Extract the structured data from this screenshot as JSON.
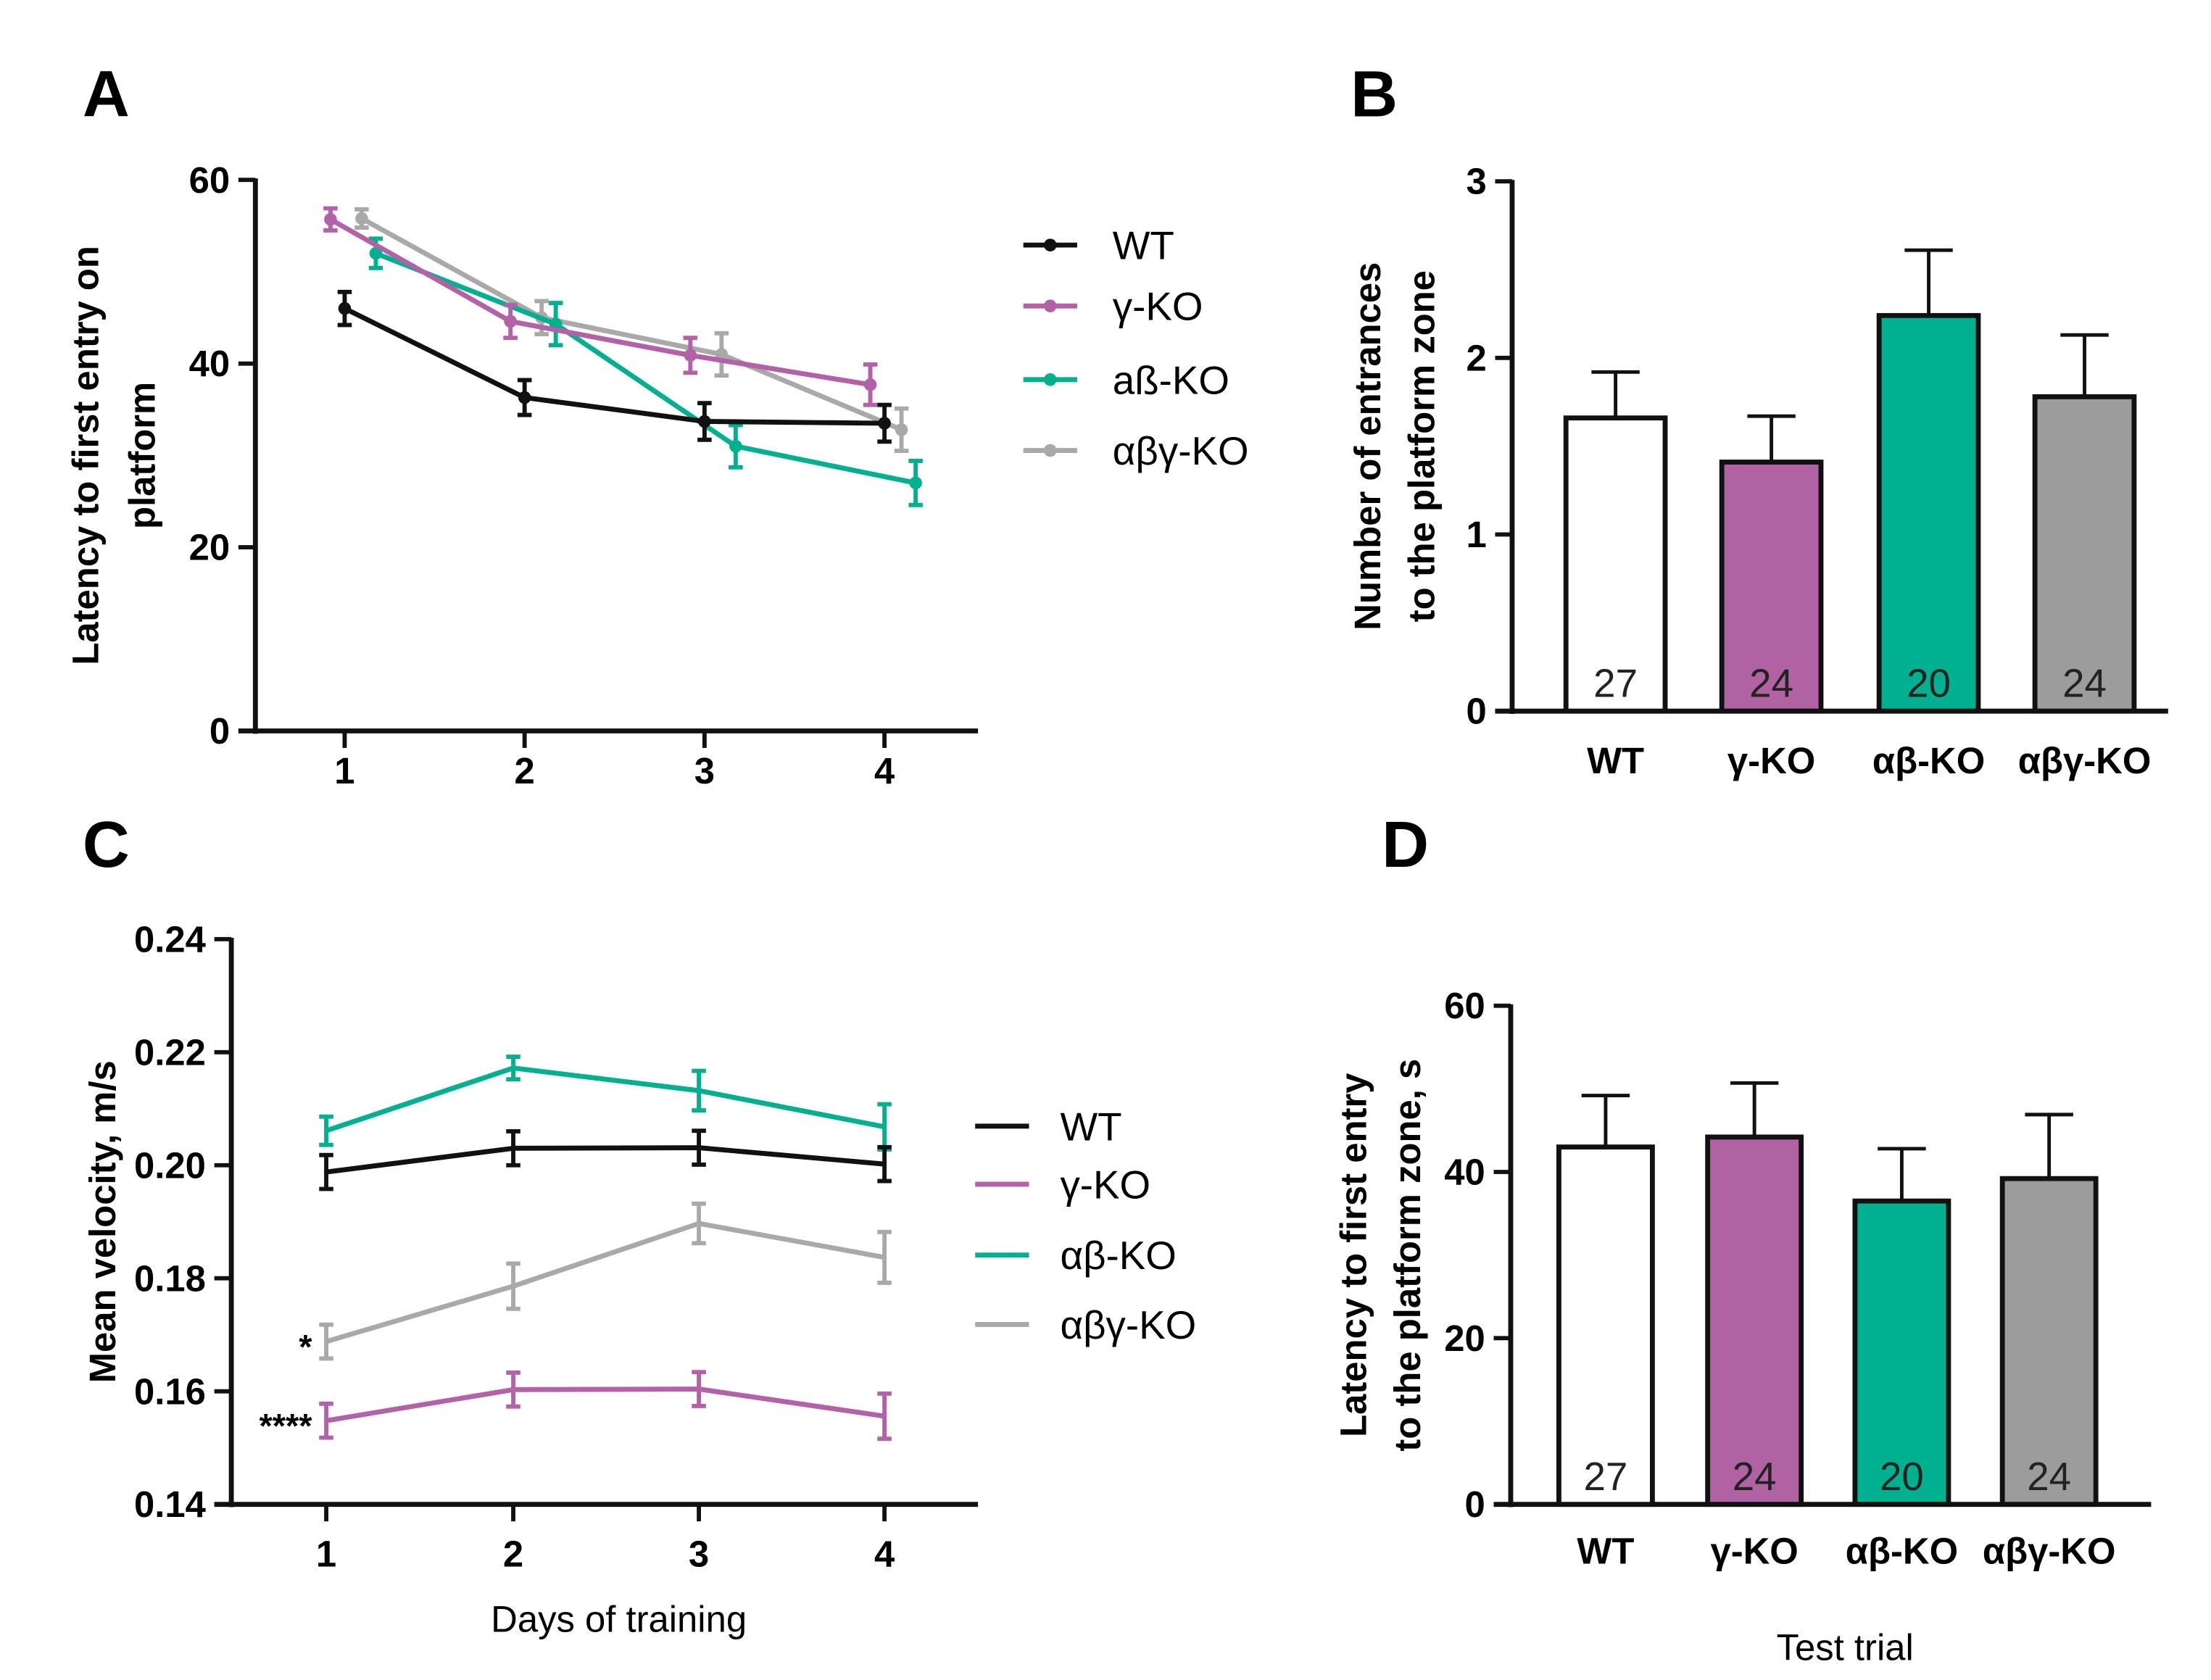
{
  "colors": {
    "WT": "#111111",
    "gamma": "#b462a8",
    "ab": "#00b08e",
    "abg": "#a9a9a9",
    "gamma_bar": "#b062a2",
    "ab_bar": "#00b08e",
    "abg_bar": "#9c9c9c",
    "wt_bar": "#ffffff"
  },
  "chart_data": [
    {
      "panel": "A",
      "type": "line",
      "ylabel": [
        "Latency to first entry on",
        "platform"
      ],
      "xlabel": "",
      "x": [
        1,
        2,
        3,
        4
      ],
      "xticks": [
        "1",
        "2",
        "3",
        "4"
      ],
      "ylim": [
        0,
        60
      ],
      "yticks": [
        "0",
        "20",
        "40",
        "60"
      ],
      "legend": "right",
      "series": [
        {
          "name": "WT",
          "color_key": "WT",
          "values": [
            46.0,
            36.3,
            33.7,
            33.5
          ],
          "errors": [
            1.8,
            1.9,
            2.0,
            2.0
          ]
        },
        {
          "name": "γ-KO",
          "color_key": "gamma",
          "values": [
            55.7,
            44.6,
            40.9,
            37.7
          ],
          "errors": [
            1.2,
            1.8,
            1.9,
            2.2
          ]
        },
        {
          "name": "aß-KO",
          "color_key": "ab",
          "values": [
            52.0,
            44.3,
            31.0,
            27.0
          ],
          "errors": [
            1.6,
            2.3,
            2.3,
            2.4
          ]
        },
        {
          "name": "αβγ-KO",
          "color_key": "abg",
          "values": [
            55.8,
            45.0,
            41.0,
            32.8
          ],
          "errors": [
            1.0,
            1.8,
            2.3,
            2.3
          ]
        }
      ]
    },
    {
      "panel": "B",
      "type": "bar",
      "ylabel": [
        "Number of entrances",
        "to the platform zone"
      ],
      "categories": [
        "WT",
        "γ-KO",
        "αβ-KO",
        "αβγ-KO"
      ],
      "values": [
        1.66,
        1.41,
        2.24,
        1.78
      ],
      "errors": [
        0.26,
        0.26,
        0.37,
        0.35
      ],
      "n_labels": [
        "27",
        "24",
        "20",
        "24"
      ],
      "ylim": [
        0,
        3
      ],
      "yticks": [
        "0",
        "1",
        "2",
        "3"
      ]
    },
    {
      "panel": "C",
      "type": "line",
      "ylabel": [
        "Mean velocity,  m/s"
      ],
      "xlabel": "Days of training",
      "x": [
        1,
        2,
        3,
        4
      ],
      "xticks": [
        "1",
        "2",
        "3",
        "4"
      ],
      "ylim": [
        0.14,
        0.24
      ],
      "yticks": [
        "0.14",
        "0.16",
        "0.18",
        "0.20",
        "0.22",
        "0.24"
      ],
      "legend": "right",
      "annotations": [
        {
          "text": "*",
          "series": "αβγ-KO"
        },
        {
          "text": "****",
          "series": "γ-KO"
        }
      ],
      "series": [
        {
          "name": "WT",
          "color_key": "WT",
          "values": [
            0.1988,
            0.203,
            0.2031,
            0.2002
          ],
          "errors": [
            0.003,
            0.003,
            0.003,
            0.003
          ]
        },
        {
          "name": "γ-KO",
          "color_key": "gamma",
          "values": [
            0.1548,
            0.1603,
            0.1604,
            0.1556
          ],
          "errors": [
            0.003,
            0.003,
            0.003,
            0.004
          ]
        },
        {
          "name": "αβ-KO",
          "color_key": "ab",
          "values": [
            0.2061,
            0.2172,
            0.2132,
            0.2068
          ],
          "errors": [
            0.0025,
            0.002,
            0.0035,
            0.004
          ]
        },
        {
          "name": "αβγ-KO",
          "color_key": "abg",
          "values": [
            0.1688,
            0.1786,
            0.1897,
            0.1837
          ],
          "errors": [
            0.003,
            0.004,
            0.0035,
            0.0045
          ]
        }
      ]
    },
    {
      "panel": "D",
      "type": "bar",
      "ylabel": [
        "Latency to  first entry",
        "to the platform zone, s"
      ],
      "xlabel": "Test trial",
      "categories": [
        "WT",
        "γ-KO",
        "αβ-KO",
        "αβγ-KO"
      ],
      "values": [
        43.0,
        44.2,
        36.5,
        39.2
      ],
      "errors": [
        6.2,
        6.5,
        6.3,
        7.7
      ],
      "n_labels": [
        "27",
        "24",
        "20",
        "24"
      ],
      "ylim": [
        0,
        60
      ],
      "yticks": [
        "0",
        "20",
        "40",
        "60"
      ]
    }
  ]
}
